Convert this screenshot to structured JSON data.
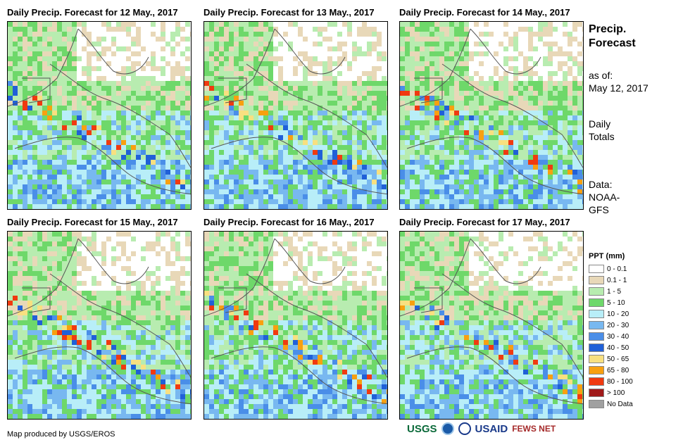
{
  "panels": [
    {
      "title": "Daily Precip. Forecast for 12 May., 2017",
      "seed": 12
    },
    {
      "title": "Daily Precip. Forecast for 13 May., 2017",
      "seed": 13
    },
    {
      "title": "Daily Precip. Forecast for 14 May., 2017",
      "seed": 14
    },
    {
      "title": "Daily Precip. Forecast for 15 May., 2017",
      "seed": 15
    },
    {
      "title": "Daily Precip. Forecast for 16 May., 2017",
      "seed": 16
    },
    {
      "title": "Daily Precip. Forecast for 17 May., 2017",
      "seed": 17
    }
  ],
  "side": {
    "title_line1": "Precip.",
    "title_line2": "Forecast",
    "asof_line1": "as of:",
    "asof_line2": "May 12, 2017",
    "daily_line1": "Daily",
    "daily_line2": "Totals",
    "data_line1": "Data:",
    "data_line2": "NOAA-",
    "data_line3": "GFS"
  },
  "legend": {
    "title": "PPT (mm)",
    "items": [
      {
        "label": "0 - 0.1",
        "color": "#ffffff"
      },
      {
        "label": "0.1 - 1",
        "color": "#e8d8b8"
      },
      {
        "label": "1 - 5",
        "color": "#b8ecb0"
      },
      {
        "label": "5 - 10",
        "color": "#6ed86a"
      },
      {
        "label": "10 - 20",
        "color": "#b8eef8"
      },
      {
        "label": "20 - 30",
        "color": "#78b8f0"
      },
      {
        "label": "30 - 40",
        "color": "#4a8ee8"
      },
      {
        "label": "40 - 50",
        "color": "#2060d8"
      },
      {
        "label": "50 - 65",
        "color": "#f8e080"
      },
      {
        "label": "65 - 80",
        "color": "#f8a010"
      },
      {
        "label": "80 - 100",
        "color": "#f03a10"
      },
      {
        "label": "> 100",
        "color": "#a01a1a"
      },
      {
        "label": "No Data",
        "color": "#a0a0a0"
      }
    ]
  },
  "credit": "Map produced by USGS/EROS",
  "logos": {
    "usgs": "USGS",
    "usaid": "USAID",
    "fewsnet": "FEWS NET"
  }
}
